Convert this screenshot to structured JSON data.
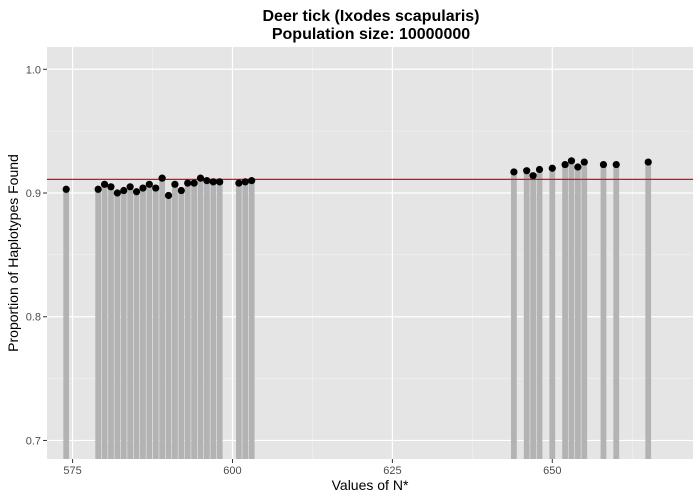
{
  "chart_data": {
    "type": "bar",
    "title": "Deer tick (Ixodes scapularis)",
    "subtitle": "Population size: 10000000",
    "xlabel": "Values of N*",
    "ylabel": "Proportion of Haplotypes Found",
    "xlim": [
      571,
      672
    ],
    "ylim": [
      0.685,
      1.018
    ],
    "x_ticks": [
      575,
      600,
      625,
      650
    ],
    "y_ticks": [
      0.7,
      0.8,
      0.9,
      1.0
    ],
    "x_tick_labels": [
      "575",
      "600",
      "625",
      "650"
    ],
    "y_tick_labels": [
      "0.7",
      "0.8",
      "0.9",
      "1.0"
    ],
    "reference_line": {
      "y": 0.911,
      "color": "#ff0000"
    },
    "grid": true,
    "background_color": "#e5e5e5",
    "bar_color": "#b3b3b3",
    "point_color": "#000000",
    "points": [
      {
        "x": 574,
        "y": 0.903
      },
      {
        "x": 579,
        "y": 0.903
      },
      {
        "x": 580,
        "y": 0.907
      },
      {
        "x": 581,
        "y": 0.905
      },
      {
        "x": 582,
        "y": 0.9
      },
      {
        "x": 583,
        "y": 0.902
      },
      {
        "x": 584,
        "y": 0.905
      },
      {
        "x": 585,
        "y": 0.901
      },
      {
        "x": 586,
        "y": 0.904
      },
      {
        "x": 587,
        "y": 0.907
      },
      {
        "x": 588,
        "y": 0.904
      },
      {
        "x": 589,
        "y": 0.912
      },
      {
        "x": 590,
        "y": 0.898
      },
      {
        "x": 591,
        "y": 0.907
      },
      {
        "x": 592,
        "y": 0.902
      },
      {
        "x": 593,
        "y": 0.908
      },
      {
        "x": 594,
        "y": 0.908
      },
      {
        "x": 595,
        "y": 0.912
      },
      {
        "x": 596,
        "y": 0.91
      },
      {
        "x": 597,
        "y": 0.909
      },
      {
        "x": 598,
        "y": 0.909
      },
      {
        "x": 601,
        "y": 0.908
      },
      {
        "x": 602,
        "y": 0.909
      },
      {
        "x": 603,
        "y": 0.91
      },
      {
        "x": 644,
        "y": 0.917
      },
      {
        "x": 646,
        "y": 0.918
      },
      {
        "x": 647,
        "y": 0.914
      },
      {
        "x": 648,
        "y": 0.919
      },
      {
        "x": 650,
        "y": 0.92
      },
      {
        "x": 652,
        "y": 0.923
      },
      {
        "x": 653,
        "y": 0.926
      },
      {
        "x": 654,
        "y": 0.921
      },
      {
        "x": 655,
        "y": 0.925
      },
      {
        "x": 658,
        "y": 0.923
      },
      {
        "x": 660,
        "y": 0.923
      },
      {
        "x": 665,
        "y": 0.925
      }
    ]
  }
}
